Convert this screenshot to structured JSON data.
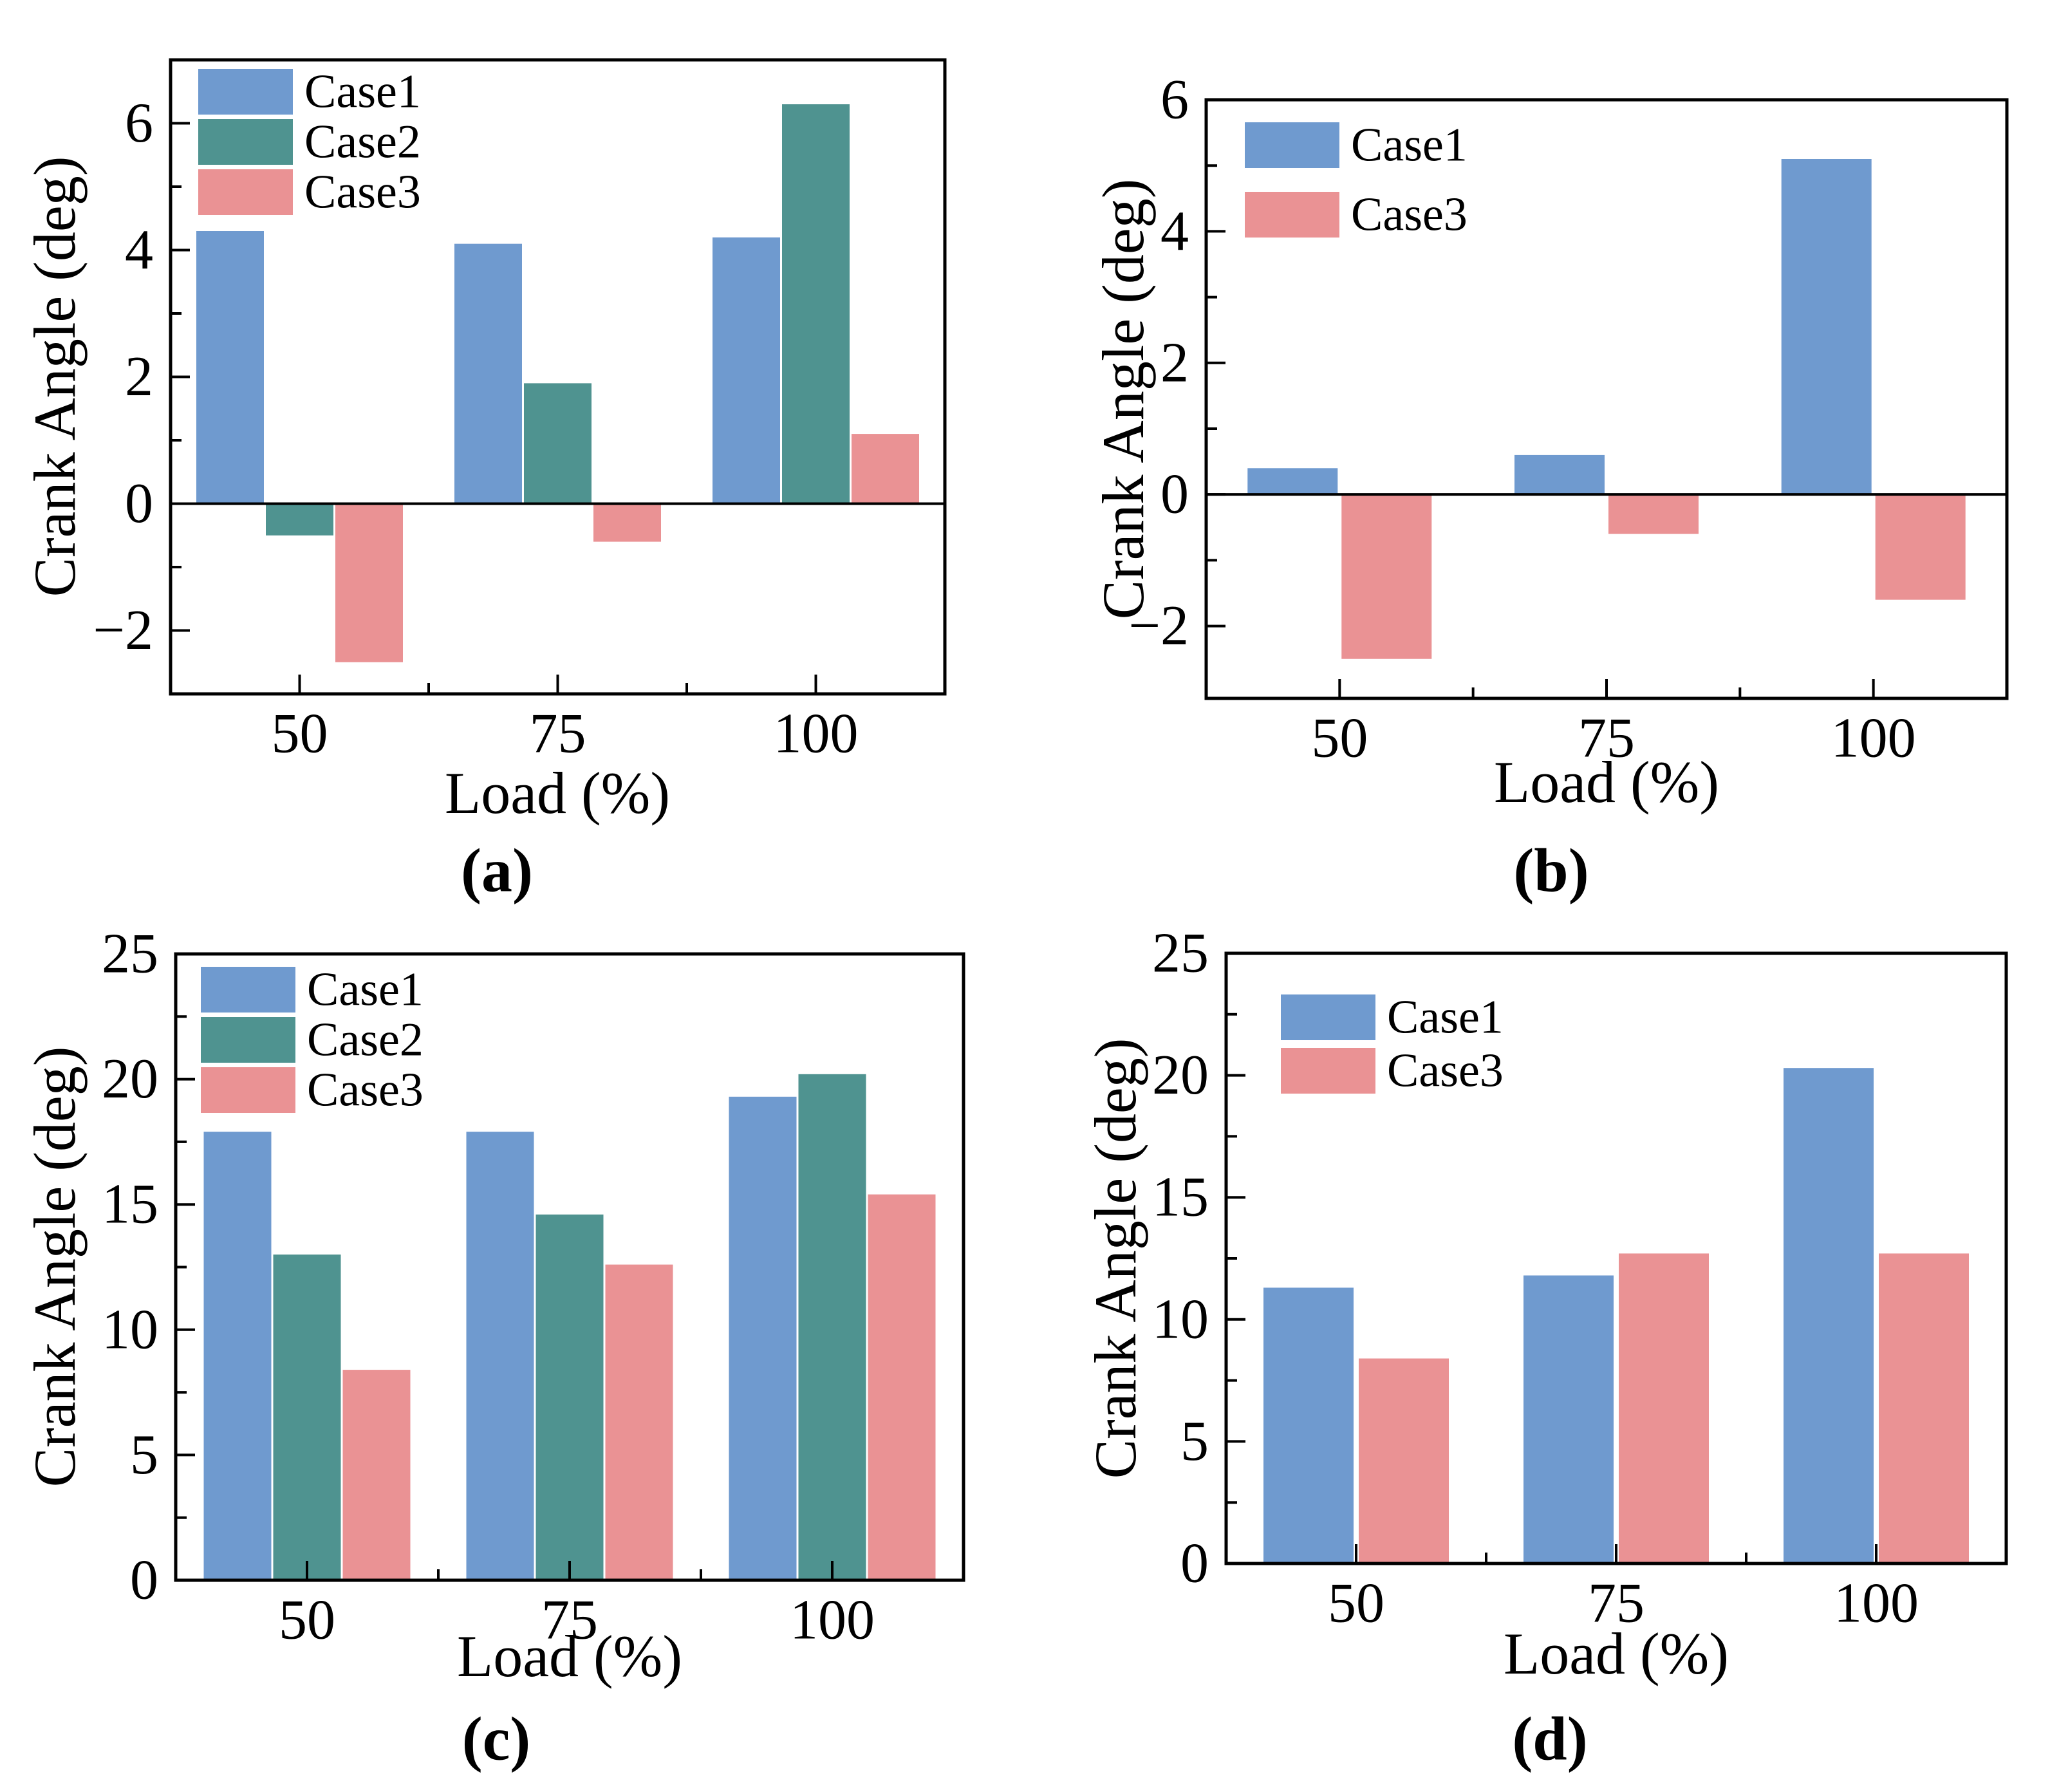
{
  "figure": {
    "background": "#ffffff",
    "text_color": "#000000",
    "palette": {
      "Case1": "#6F9ACF",
      "Case2": "#4F9390",
      "Case3": "#EA9294"
    }
  },
  "chart_data": [
    {
      "id": "a",
      "type": "bar",
      "caption": "(a)",
      "xlabel": "Load (%)",
      "ylabel": "Crank Angle (deg)",
      "categories": [
        "50",
        "75",
        "100"
      ],
      "series": [
        {
          "name": "Case1",
          "values": [
            4.3,
            4.1,
            4.2
          ]
        },
        {
          "name": "Case2",
          "values": [
            -0.5,
            1.9,
            6.3
          ]
        },
        {
          "name": "Case3",
          "values": [
            -2.5,
            -0.6,
            1.1
          ]
        }
      ],
      "legend": [
        "Case1",
        "Case2",
        "Case3"
      ],
      "legend_position": "top-left",
      "ylim": [
        -3.0,
        7.0
      ],
      "yticks": [
        -2,
        0,
        2,
        4,
        6
      ],
      "yminorticks": [
        -1,
        1,
        3,
        5
      ],
      "grid": false,
      "zero_line": true
    },
    {
      "id": "b",
      "type": "bar",
      "caption": "(b)",
      "xlabel": "Load (%)",
      "ylabel": "Crank Angle (deg)",
      "categories": [
        "50",
        "75",
        "100"
      ],
      "series": [
        {
          "name": "Case1",
          "values": [
            0.4,
            0.6,
            5.1
          ]
        },
        {
          "name": "Case3",
          "values": [
            -2.5,
            -0.6,
            -1.6
          ]
        }
      ],
      "legend": [
        "Case1",
        "Case3"
      ],
      "legend_position": "top-left",
      "ylim": [
        -3.1,
        6.0
      ],
      "yticks": [
        -2,
        0,
        2,
        4,
        6
      ],
      "yminorticks": [
        -1,
        1,
        3,
        5
      ],
      "grid": false,
      "zero_line": true
    },
    {
      "id": "c",
      "type": "bar",
      "caption": "(c)",
      "xlabel": "Load (%)",
      "ylabel": "Crank Angle (deg)",
      "categories": [
        "50",
        "75",
        "100"
      ],
      "series": [
        {
          "name": "Case1",
          "values": [
            17.9,
            17.9,
            19.3
          ]
        },
        {
          "name": "Case2",
          "values": [
            13.0,
            14.6,
            20.2
          ]
        },
        {
          "name": "Case3",
          "values": [
            8.4,
            12.6,
            15.4
          ]
        }
      ],
      "legend": [
        "Case1",
        "Case2",
        "Case3"
      ],
      "legend_position": "top-left",
      "ylim": [
        0,
        25
      ],
      "yticks": [
        0,
        5,
        10,
        15,
        20,
        25
      ],
      "yminorticks": [
        2.5,
        7.5,
        12.5,
        17.5,
        22.5
      ],
      "grid": false,
      "zero_line": false
    },
    {
      "id": "d",
      "type": "bar",
      "caption": "(d)",
      "xlabel": "Load (%)",
      "ylabel": "Crank Angle (deg)",
      "categories": [
        "50",
        "75",
        "100"
      ],
      "series": [
        {
          "name": "Case1",
          "values": [
            11.3,
            11.8,
            20.3
          ]
        },
        {
          "name": "Case3",
          "values": [
            8.4,
            12.7,
            12.7
          ]
        }
      ],
      "legend": [
        "Case1",
        "Case3"
      ],
      "legend_position": "top-left",
      "ylim": [
        0,
        25
      ],
      "yticks": [
        0,
        5,
        10,
        15,
        20,
        25
      ],
      "yminorticks": [
        2.5,
        7.5,
        12.5,
        17.5,
        22.5
      ],
      "grid": false,
      "zero_line": false
    }
  ]
}
